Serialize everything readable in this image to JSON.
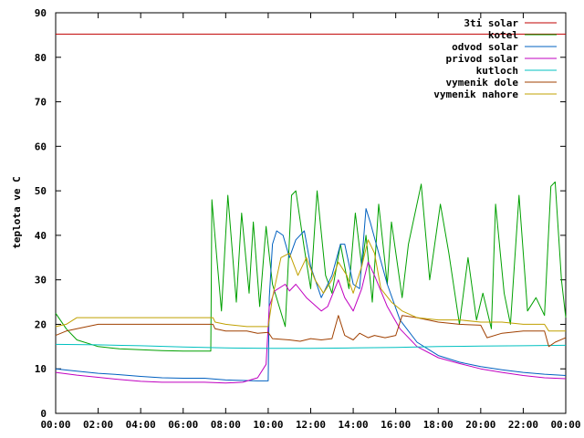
{
  "chart_data": {
    "type": "line",
    "title": "",
    "xlabel": "",
    "ylabel": "teplota ve C",
    "xlim": [
      0,
      24
    ],
    "ylim": [
      0,
      90
    ],
    "grid": false,
    "legend_position": "top-right",
    "x_ticks": [
      {
        "value": 0,
        "label": "00:00"
      },
      {
        "value": 2,
        "label": "02:00"
      },
      {
        "value": 4,
        "label": "04:00"
      },
      {
        "value": 6,
        "label": "06:00"
      },
      {
        "value": 8,
        "label": "08:00"
      },
      {
        "value": 10,
        "label": "10:00"
      },
      {
        "value": 12,
        "label": "12:00"
      },
      {
        "value": 14,
        "label": "14:00"
      },
      {
        "value": 16,
        "label": "16:00"
      },
      {
        "value": 18,
        "label": "18:00"
      },
      {
        "value": 20,
        "label": "20:00"
      },
      {
        "value": 22,
        "label": "22:00"
      },
      {
        "value": 24,
        "label": "00:00"
      }
    ],
    "y_ticks": [
      {
        "value": 0,
        "label": "0"
      },
      {
        "value": 10,
        "label": "10"
      },
      {
        "value": 20,
        "label": "20"
      },
      {
        "value": 30,
        "label": "30"
      },
      {
        "value": 40,
        "label": "40"
      },
      {
        "value": 50,
        "label": "50"
      },
      {
        "value": 60,
        "label": "60"
      },
      {
        "value": 70,
        "label": "70"
      },
      {
        "value": 80,
        "label": "80"
      },
      {
        "value": 90,
        "label": "90"
      }
    ],
    "series": [
      {
        "name": "3ti solar",
        "color": "#c00000",
        "points": [
          [
            0,
            85.2
          ],
          [
            24,
            85.2
          ]
        ]
      },
      {
        "name": "kotel",
        "color": "#00a000",
        "points": [
          [
            0,
            22.5
          ],
          [
            0.5,
            19
          ],
          [
            1,
            16.5
          ],
          [
            2,
            15
          ],
          [
            3,
            14.5
          ],
          [
            4,
            14.3
          ],
          [
            5,
            14.1
          ],
          [
            6,
            14
          ],
          [
            7.3,
            14
          ],
          [
            7.35,
            48
          ],
          [
            7.6,
            34
          ],
          [
            7.8,
            23
          ],
          [
            8.1,
            49
          ],
          [
            8.5,
            25
          ],
          [
            8.75,
            45
          ],
          [
            9.1,
            27
          ],
          [
            9.3,
            43
          ],
          [
            9.6,
            24
          ],
          [
            9.9,
            42
          ],
          [
            10.2,
            29
          ],
          [
            10.8,
            19.5
          ],
          [
            11.1,
            49
          ],
          [
            11.3,
            50
          ],
          [
            11.7,
            37
          ],
          [
            12.0,
            28
          ],
          [
            12.3,
            50
          ],
          [
            12.7,
            31
          ],
          [
            13.0,
            27
          ],
          [
            13.4,
            38
          ],
          [
            13.8,
            28
          ],
          [
            14.1,
            45
          ],
          [
            14.4,
            33
          ],
          [
            14.6,
            40
          ],
          [
            14.9,
            25
          ],
          [
            15.2,
            47
          ],
          [
            15.6,
            29
          ],
          [
            15.8,
            43
          ],
          [
            16.3,
            26
          ],
          [
            16.6,
            38
          ],
          [
            17.2,
            51.5
          ],
          [
            17.6,
            30
          ],
          [
            18.1,
            47
          ],
          [
            18.5,
            36
          ],
          [
            19.0,
            20
          ],
          [
            19.4,
            35
          ],
          [
            19.8,
            21
          ],
          [
            20.1,
            27
          ],
          [
            20.5,
            19
          ],
          [
            20.7,
            47
          ],
          [
            21.1,
            27
          ],
          [
            21.4,
            20
          ],
          [
            21.8,
            49
          ],
          [
            22.2,
            23
          ],
          [
            22.6,
            26
          ],
          [
            23.0,
            22
          ],
          [
            23.3,
            51
          ],
          [
            23.5,
            52
          ],
          [
            23.8,
            30
          ],
          [
            24.0,
            21.5
          ]
        ]
      },
      {
        "name": "odvod solar",
        "color": "#0060c0",
        "points": [
          [
            0,
            10
          ],
          [
            1,
            9.5
          ],
          [
            2,
            9
          ],
          [
            3,
            8.7
          ],
          [
            4,
            8.3
          ],
          [
            5,
            8
          ],
          [
            6,
            7.9
          ],
          [
            7,
            7.9
          ],
          [
            8,
            7.5
          ],
          [
            9.5,
            7.3
          ],
          [
            10,
            7.3
          ],
          [
            10.05,
            26
          ],
          [
            10.2,
            38
          ],
          [
            10.4,
            41
          ],
          [
            10.7,
            40
          ],
          [
            11.0,
            35
          ],
          [
            11.3,
            39
          ],
          [
            11.7,
            41
          ],
          [
            12.0,
            33
          ],
          [
            12.5,
            26
          ],
          [
            13.0,
            31
          ],
          [
            13.4,
            38
          ],
          [
            13.6,
            38
          ],
          [
            14.0,
            29
          ],
          [
            14.3,
            28
          ],
          [
            14.6,
            46
          ],
          [
            14.8,
            43
          ],
          [
            15.2,
            36
          ],
          [
            15.6,
            29
          ],
          [
            16.2,
            21
          ],
          [
            17.0,
            16
          ],
          [
            18.0,
            13
          ],
          [
            19.0,
            11.5
          ],
          [
            20.0,
            10.5
          ],
          [
            21.0,
            9.8
          ],
          [
            22.0,
            9.2
          ],
          [
            23.0,
            8.8
          ],
          [
            24.0,
            8.5
          ]
        ]
      },
      {
        "name": "privod solar",
        "color": "#c000c0",
        "points": [
          [
            0,
            9.2
          ],
          [
            1,
            8.6
          ],
          [
            2,
            8.1
          ],
          [
            3,
            7.6
          ],
          [
            4,
            7.2
          ],
          [
            5,
            7
          ],
          [
            6,
            7
          ],
          [
            7,
            7
          ],
          [
            8,
            6.8
          ],
          [
            8.8,
            7
          ],
          [
            9.5,
            8
          ],
          [
            9.9,
            11
          ],
          [
            10.05,
            24
          ],
          [
            10.3,
            27.5
          ],
          [
            10.8,
            29
          ],
          [
            11.0,
            27.5
          ],
          [
            11.3,
            29
          ],
          [
            11.8,
            26
          ],
          [
            12.5,
            23
          ],
          [
            12.8,
            24
          ],
          [
            13.3,
            30
          ],
          [
            13.6,
            26
          ],
          [
            14.0,
            23
          ],
          [
            14.4,
            28
          ],
          [
            14.7,
            34
          ],
          [
            15.0,
            31
          ],
          [
            15.6,
            24
          ],
          [
            16.2,
            19
          ],
          [
            17.0,
            15
          ],
          [
            18.0,
            12.5
          ],
          [
            19.0,
            11.2
          ],
          [
            20.0,
            10
          ],
          [
            21.0,
            9.2
          ],
          [
            22.0,
            8.5
          ],
          [
            23.0,
            8.0
          ],
          [
            24.0,
            7.8
          ]
        ]
      },
      {
        "name": "kutloch",
        "color": "#00c0c0",
        "points": [
          [
            0,
            15.5
          ],
          [
            2,
            15.4
          ],
          [
            4,
            15.2
          ],
          [
            6,
            14.9
          ],
          [
            8,
            14.7
          ],
          [
            10,
            14.6
          ],
          [
            12,
            14.6
          ],
          [
            14,
            14.7
          ],
          [
            16,
            14.8
          ],
          [
            18,
            15
          ],
          [
            20,
            15.1
          ],
          [
            22,
            15.2
          ],
          [
            24,
            15.3
          ]
        ]
      },
      {
        "name": "vymenik dole",
        "color": "#a04000",
        "points": [
          [
            0,
            17.5
          ],
          [
            0.5,
            18.5
          ],
          [
            1,
            19
          ],
          [
            2,
            20
          ],
          [
            3,
            20
          ],
          [
            4,
            20
          ],
          [
            5,
            20
          ],
          [
            6,
            20
          ],
          [
            7.4,
            20
          ],
          [
            7.5,
            19
          ],
          [
            8,
            18.5
          ],
          [
            9,
            18.5
          ],
          [
            9.5,
            18
          ],
          [
            10,
            18.2
          ],
          [
            10.2,
            16.8
          ],
          [
            11,
            16.5
          ],
          [
            11.5,
            16.2
          ],
          [
            12,
            16.8
          ],
          [
            12.5,
            16.5
          ],
          [
            13,
            16.8
          ],
          [
            13.3,
            22
          ],
          [
            13.6,
            17.5
          ],
          [
            14,
            16.5
          ],
          [
            14.3,
            18
          ],
          [
            14.7,
            17
          ],
          [
            15.0,
            17.5
          ],
          [
            15.5,
            17
          ],
          [
            16,
            17.5
          ],
          [
            16.3,
            22
          ],
          [
            17,
            21.5
          ],
          [
            18,
            20.5
          ],
          [
            19,
            20
          ],
          [
            20,
            19.8
          ],
          [
            20.3,
            17
          ],
          [
            21,
            18
          ],
          [
            22,
            18.5
          ],
          [
            23,
            18.5
          ],
          [
            23.2,
            15
          ],
          [
            23.5,
            16
          ],
          [
            24,
            17
          ]
        ]
      },
      {
        "name": "vymenik nahore",
        "color": "#c0a000",
        "points": [
          [
            0,
            19.5
          ],
          [
            0.5,
            20
          ],
          [
            1,
            21.5
          ],
          [
            2,
            21.5
          ],
          [
            3,
            21.5
          ],
          [
            4,
            21.5
          ],
          [
            5,
            21.5
          ],
          [
            6,
            21.5
          ],
          [
            7.4,
            21.5
          ],
          [
            7.5,
            20.5
          ],
          [
            8,
            20
          ],
          [
            9,
            19.5
          ],
          [
            10,
            19.5
          ],
          [
            10.2,
            26
          ],
          [
            10.6,
            35
          ],
          [
            11.0,
            36
          ],
          [
            11.4,
            31
          ],
          [
            11.8,
            35
          ],
          [
            12.2,
            30
          ],
          [
            12.6,
            27
          ],
          [
            13.0,
            30
          ],
          [
            13.3,
            34
          ],
          [
            13.7,
            31
          ],
          [
            14.0,
            27
          ],
          [
            14.4,
            33
          ],
          [
            14.7,
            39
          ],
          [
            15.0,
            36
          ],
          [
            15.3,
            28
          ],
          [
            15.8,
            25
          ],
          [
            16.3,
            23
          ],
          [
            17,
            21.5
          ],
          [
            18,
            21
          ],
          [
            19,
            21
          ],
          [
            20,
            20.5
          ],
          [
            21,
            20.5
          ],
          [
            22,
            20
          ],
          [
            23,
            20
          ],
          [
            23.2,
            18.5
          ],
          [
            24,
            18.5
          ]
        ]
      }
    ]
  }
}
